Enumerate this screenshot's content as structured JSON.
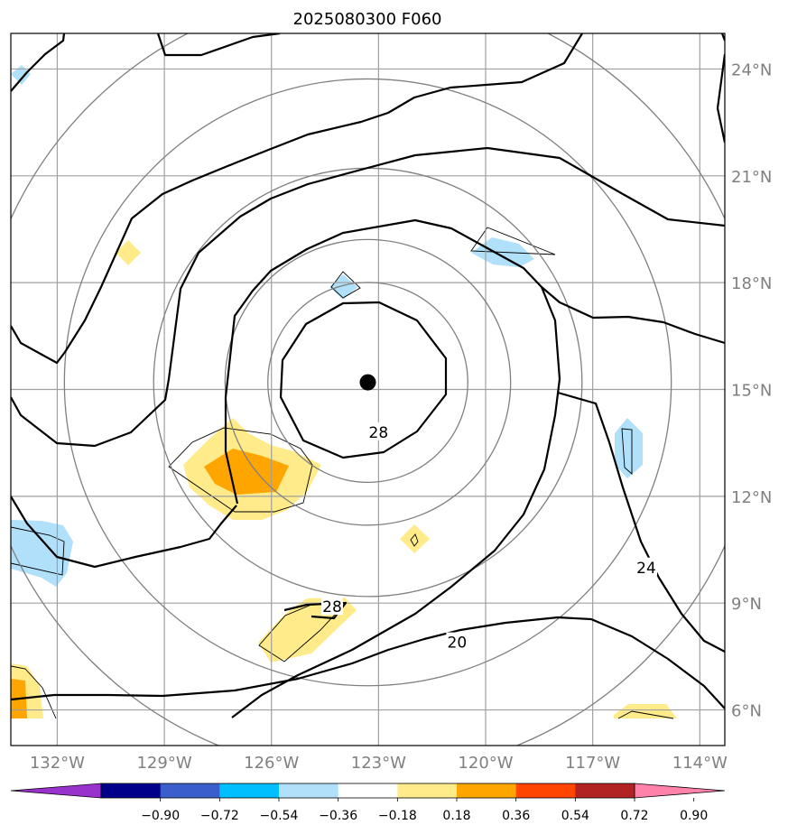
{
  "title": "2025080300 F060",
  "map": {
    "lon_range": [
      -133.3,
      -113.3
    ],
    "lat_range": [
      5.0,
      25.0
    ],
    "gridlines": true,
    "lat_ticks": [
      {
        "lat": 24,
        "label": "24°N"
      },
      {
        "lat": 21,
        "label": "21°N"
      },
      {
        "lat": 18,
        "label": "18°N"
      },
      {
        "lat": 15,
        "label": "15°N"
      },
      {
        "lat": 12,
        "label": "12°N"
      },
      {
        "lat": 9,
        "label": "9°N"
      },
      {
        "lat": 6,
        "label": "6°N"
      }
    ],
    "lon_ticks": [
      {
        "lon": -132,
        "label": "132°W"
      },
      {
        "lon": -129,
        "label": "129°W"
      },
      {
        "lon": -126,
        "label": "126°W"
      },
      {
        "lon": -123,
        "label": "123°W"
      },
      {
        "lon": -120,
        "label": "120°W"
      },
      {
        "lon": -117,
        "label": "117°W"
      },
      {
        "lon": -114,
        "label": "114°W"
      }
    ],
    "storm_center": {
      "lon": -123.3,
      "lat": 15.2
    },
    "range_rings_deg": [
      2.8,
      4.0,
      6.0,
      8.5,
      11.0
    ],
    "contour_labels": [
      {
        "text": "28",
        "lon": -123.0,
        "lat": 13.8
      },
      {
        "text": "28",
        "lon": -124.3,
        "lat": 8.9
      },
      {
        "text": "20",
        "lon": -120.8,
        "lat": 7.9
      },
      {
        "text": "24",
        "lon": -115.5,
        "lat": 10.0
      }
    ]
  },
  "colorbar": {
    "colors": [
      "#9932cc",
      "#00008b",
      "#3a5fcd",
      "#00bfff",
      "#b0e0fa",
      "#ffffff",
      "#ffeb8a",
      "#ffa500",
      "#ff4500",
      "#b22222",
      "#ff82ab"
    ],
    "labels": [
      "−0.90",
      "−0.72",
      "−0.54",
      "−0.36",
      "−0.18",
      "0.18",
      "0.36",
      "0.54",
      "0.72",
      "0.90"
    ]
  }
}
